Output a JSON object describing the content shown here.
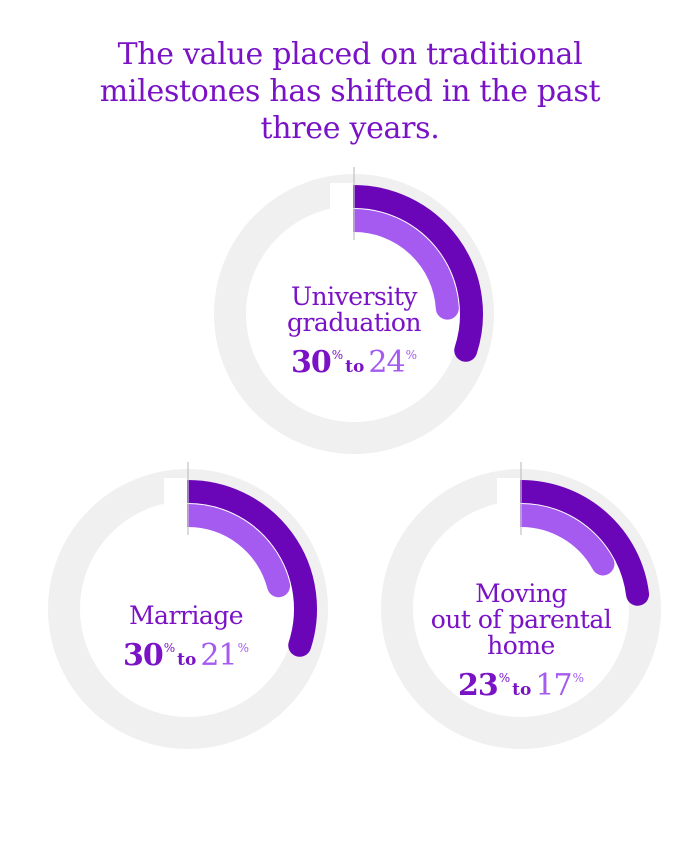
{
  "title": {
    "lines": [
      "The value placed on traditional",
      "milestones has shifted in the past",
      "three years."
    ]
  },
  "colors": {
    "title": "#7a12c6",
    "previous": "#6a06b8",
    "current": "#a55af0",
    "track": "#f0f0f0",
    "divider": "#c8c8c8",
    "label": "#7a12c6"
  },
  "chart_data": [
    {
      "type": "donut",
      "title": "University graduation",
      "name_lines": [
        "University",
        "graduation"
      ],
      "unit": "%",
      "connector": "to",
      "series": [
        {
          "name": "",
          "value": 30
        },
        {
          "name": "",
          "value": 24
        }
      ],
      "labels": {
        "old": "30",
        "new": "24"
      }
    },
    {
      "type": "donut",
      "title": "Marriage",
      "name_lines": [
        "Marriage"
      ],
      "unit": "%",
      "connector": "to",
      "series": [
        {
          "name": "",
          "value": 30
        },
        {
          "name": "",
          "value": 21
        }
      ],
      "labels": {
        "old": "30",
        "new": "21"
      }
    },
    {
      "type": "donut",
      "title": "Moving out of parental home",
      "name_lines": [
        "Moving",
        "out of parental",
        "home"
      ],
      "unit": "%",
      "connector": "to",
      "series": [
        {
          "name": "",
          "value": 23
        },
        {
          "name": "",
          "value": 17
        }
      ],
      "labels": {
        "old": "23",
        "new": "17"
      }
    }
  ]
}
